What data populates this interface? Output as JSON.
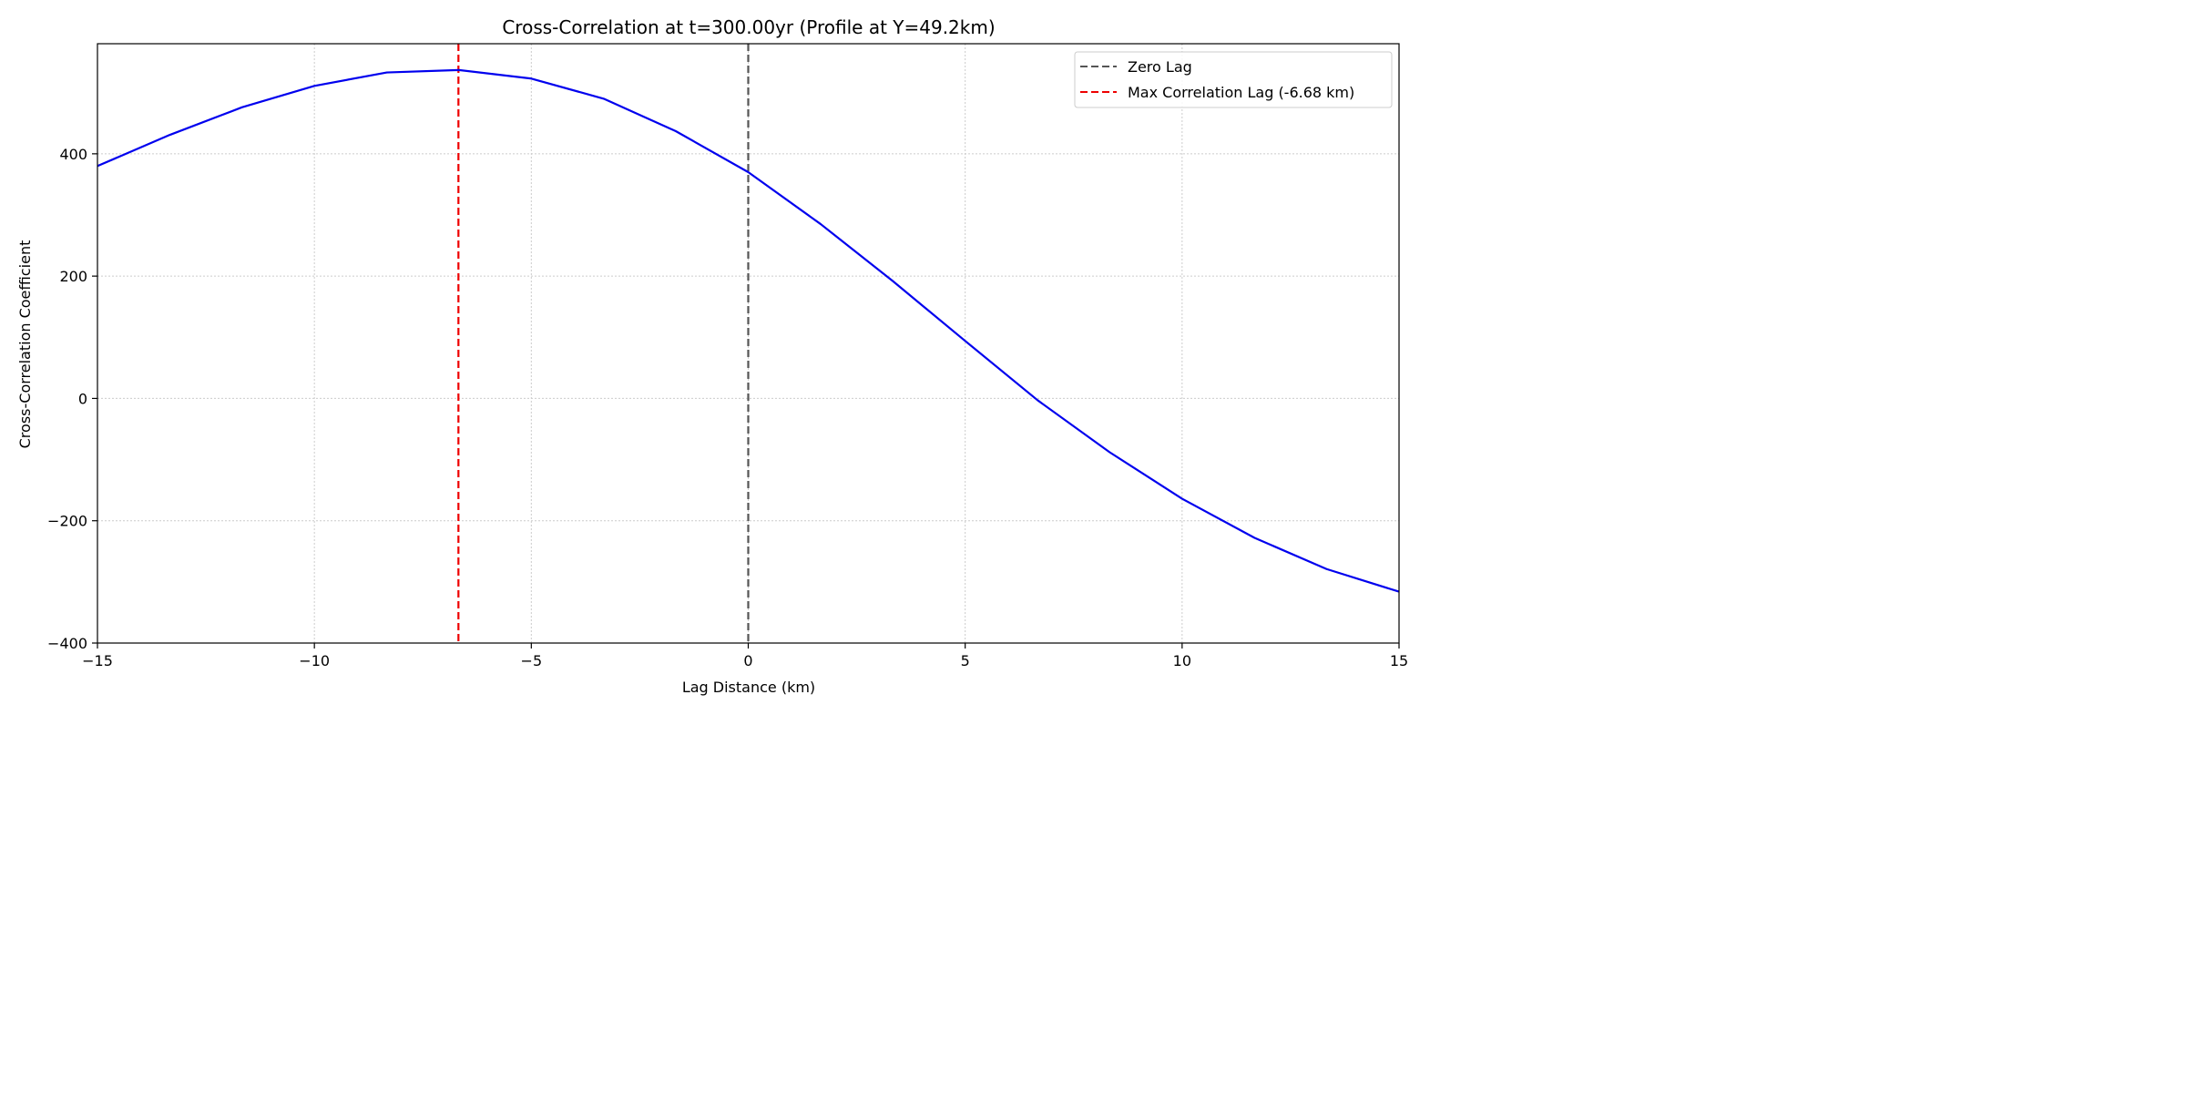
{
  "chart_data": {
    "type": "line",
    "title": "Cross-Correlation at t=300.00yr (Profile at Y=49.2km)",
    "xlabel": "Lag Distance (km)",
    "ylabel": "Cross-Correlation Coefficient",
    "xlim": [
      -15,
      15
    ],
    "ylim": [
      -400,
      580
    ],
    "xticks": [
      -15,
      -10,
      -5,
      0,
      5,
      10,
      15
    ],
    "xtick_labels": [
      "−15",
      "−10",
      "−5",
      "0",
      "5",
      "10",
      "15"
    ],
    "yticks": [
      -400,
      -200,
      0,
      200,
      400
    ],
    "ytick_labels": [
      "−400",
      "−200",
      "0",
      "200",
      "400"
    ],
    "grid": true,
    "legend_position": "top-right",
    "series": [
      {
        "color": "#0000ee",
        "x": [
          -15,
          -13.33,
          -11.67,
          -10,
          -8.33,
          -6.67,
          -5,
          -3.33,
          -1.67,
          0,
          1.67,
          3.33,
          5,
          6.67,
          8.33,
          10,
          11.67,
          13.33,
          15
        ],
        "values": [
          380,
          431,
          476,
          511,
          533,
          537,
          523,
          490,
          437,
          370,
          285,
          192,
          94,
          -3,
          -88,
          -164,
          -228,
          -279,
          -316
        ]
      }
    ],
    "reference_lines": [
      {
        "name": "Zero Lag",
        "x": 0,
        "color": "#555555"
      },
      {
        "name": "Max Correlation Lag (-6.68 km)",
        "x": -6.68,
        "color": "#ee0000"
      }
    ]
  }
}
